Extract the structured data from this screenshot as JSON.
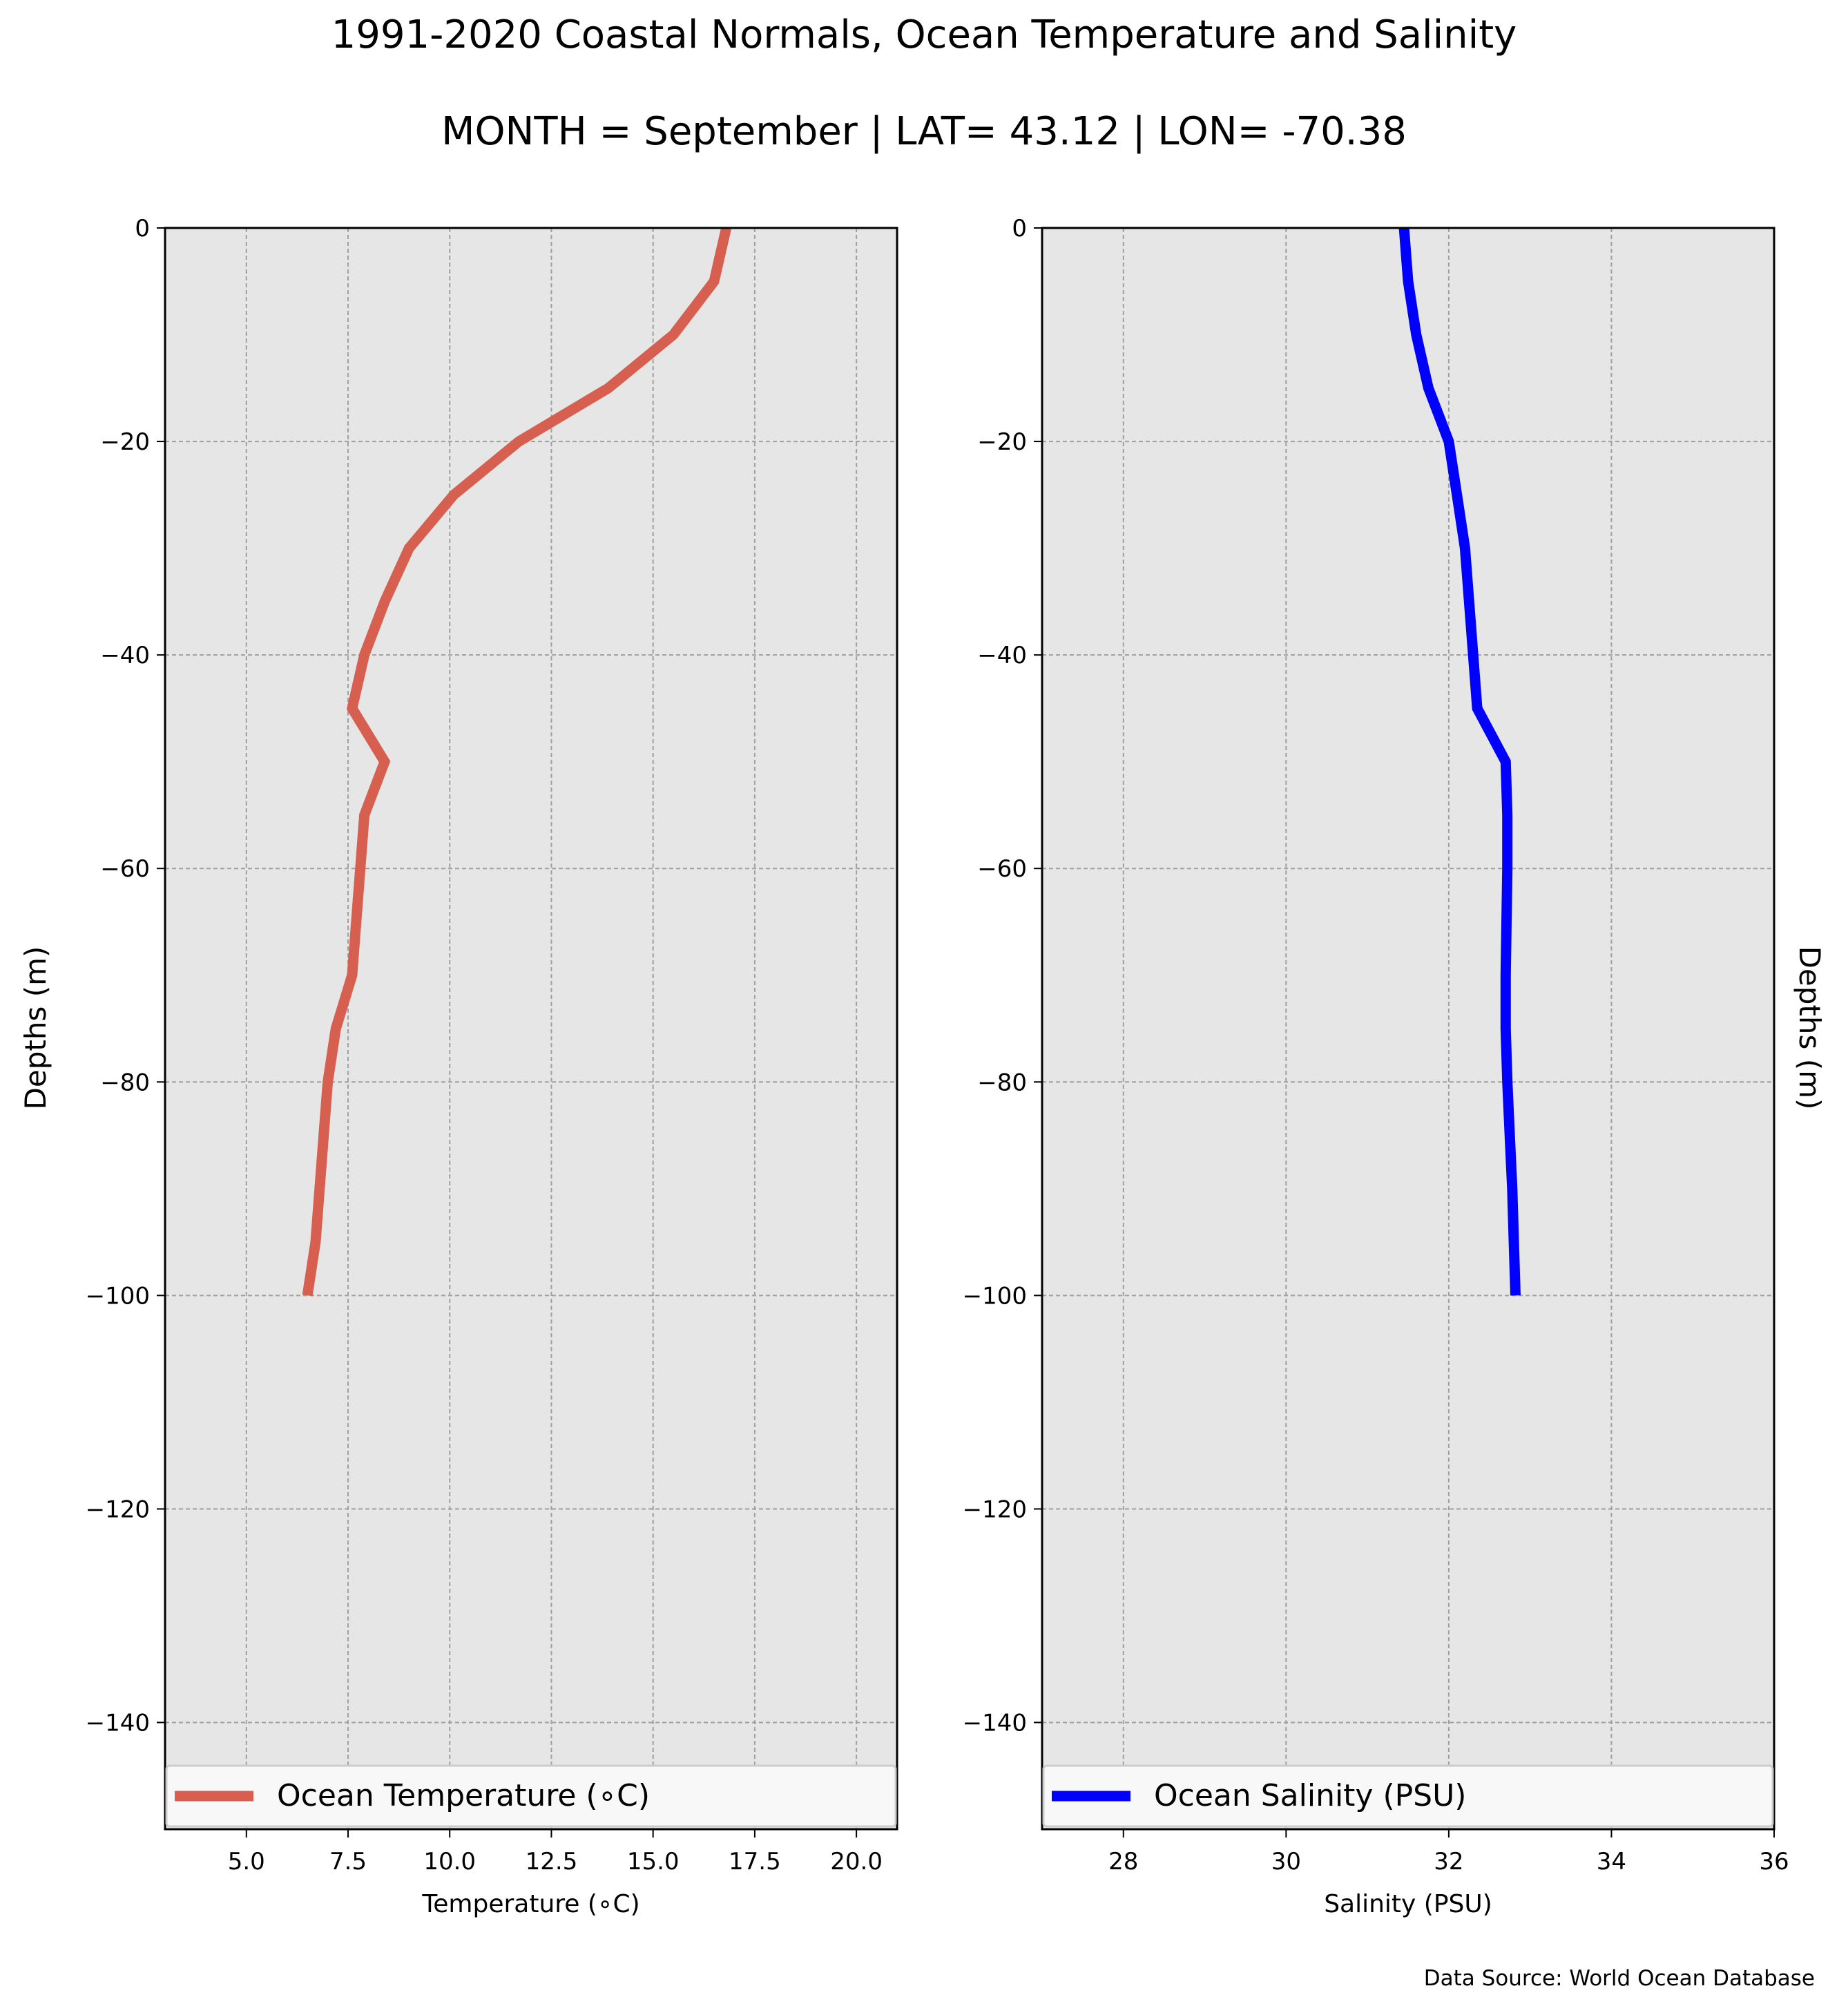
{
  "title": "1991-2020 Coastal Normals, Ocean Temperature and Salinity",
  "subtitle": "MONTH = September | LAT= 43.12 | LON= -70.38",
  "source_note": "Data Source: World Ocean Database",
  "chart_data": [
    {
      "type": "line",
      "xlabel": "Temperature ($^\\circ$C)",
      "xlabel_display": "Temperature (∘C)",
      "ylabel": "Depths (m)",
      "xlim": [
        3,
        21
      ],
      "ylim": [
        -150,
        0
      ],
      "x_ticks": [
        5.0,
        7.5,
        10.0,
        12.5,
        15.0,
        17.5,
        20.0
      ],
      "x_tick_labels": [
        "5.0",
        "7.5",
        "10.0",
        "12.5",
        "15.0",
        "17.5",
        "20.0"
      ],
      "y_ticks": [
        0,
        -20,
        -40,
        -60,
        -80,
        -100,
        -120,
        -140
      ],
      "y_tick_labels": [
        "0",
        "−20",
        "−40",
        "−60",
        "−80",
        "−100",
        "−120",
        "−140"
      ],
      "grid": true,
      "legend_position": "bottom",
      "series": [
        {
          "name": "Ocean Temperature ($^\\circ$C)",
          "name_display": "Ocean Temperature (∘C)",
          "color": "#d65f4f",
          "x": [
            16.8,
            16.5,
            15.5,
            13.9,
            11.7,
            10.1,
            9.0,
            8.4,
            7.9,
            7.6,
            8.4,
            7.9,
            7.8,
            7.6,
            7.2,
            7.0,
            6.9,
            6.8,
            6.7,
            6.5
          ],
          "y": [
            0,
            -5,
            -10,
            -15,
            -20,
            -25,
            -30,
            -35,
            -40,
            -45,
            -50,
            -55,
            -60,
            -70,
            -75,
            -80,
            -85,
            -90,
            -95,
            -100
          ]
        }
      ]
    },
    {
      "type": "line",
      "xlabel": "Salinity (PSU)",
      "ylabel": "Depths (m)",
      "xlim": [
        27,
        36
      ],
      "ylim": [
        -150,
        0
      ],
      "x_ticks": [
        28,
        30,
        32,
        34,
        36
      ],
      "x_tick_labels": [
        "28",
        "30",
        "32",
        "34",
        "36"
      ],
      "y_ticks": [
        0,
        -20,
        -40,
        -60,
        -80,
        -100,
        -120,
        -140
      ],
      "y_tick_labels": [
        "0",
        "−20",
        "−40",
        "−60",
        "−80",
        "−100",
        "−120",
        "−140"
      ],
      "grid": true,
      "legend_position": "bottom",
      "series": [
        {
          "name": "Ocean Salinity (PSU)",
          "color": "#0000ff",
          "x": [
            31.45,
            31.5,
            31.6,
            31.75,
            32.0,
            32.1,
            32.2,
            32.25,
            32.3,
            32.35,
            32.7,
            32.72,
            32.72,
            32.7,
            32.7,
            32.72,
            32.75,
            32.78,
            32.8,
            32.82
          ],
          "y": [
            0,
            -5,
            -10,
            -15,
            -20,
            -25,
            -30,
            -35,
            -40,
            -45,
            -50,
            -55,
            -60,
            -70,
            -75,
            -80,
            -85,
            -90,
            -95,
            -100
          ]
        }
      ]
    }
  ]
}
